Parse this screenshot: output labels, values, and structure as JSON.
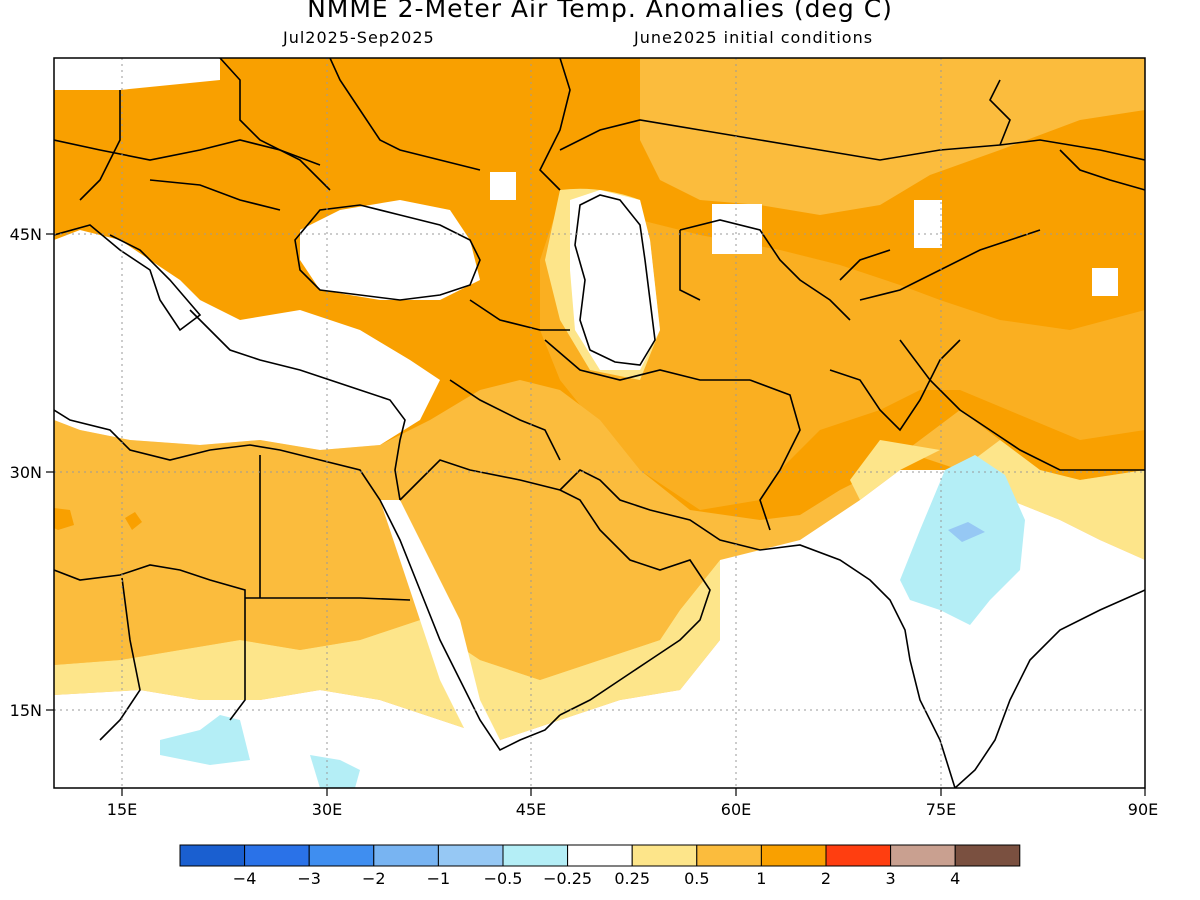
{
  "title": "NMME 2-Meter Air Temp. Anomalies (deg C)",
  "subtitle_left": "Jul2025-Sep2025",
  "subtitle_right": "June2025 initial conditions",
  "lon_labels": [
    "15E",
    "30E",
    "45E",
    "60E",
    "75E",
    "90E"
  ],
  "lat_labels": [
    "45N",
    "30N",
    "15N"
  ],
  "colorbar": {
    "colors": [
      "#1a5fd0",
      "#2a72e8",
      "#3f8ef0",
      "#78b4f2",
      "#96c8f4",
      "#b4eef6",
      "#ffffff",
      "#fde58a",
      "#fbbc3d",
      "#f9a000",
      "#ff3e10",
      "#c9a090",
      "#7a5040"
    ],
    "labels": [
      "-4",
      "-3",
      "-2",
      "-1",
      "-0.5",
      "-0.25",
      "0.25",
      "0.5",
      "1",
      "2",
      "3",
      "4"
    ]
  },
  "legend_colors": {
    "white": "#ffffff",
    "pale": "#fde58a",
    "light_orange": "#fbbc3d",
    "orange": "#f9a000",
    "light_blue": "#b4eef6",
    "blue": "#96c8f4"
  }
}
